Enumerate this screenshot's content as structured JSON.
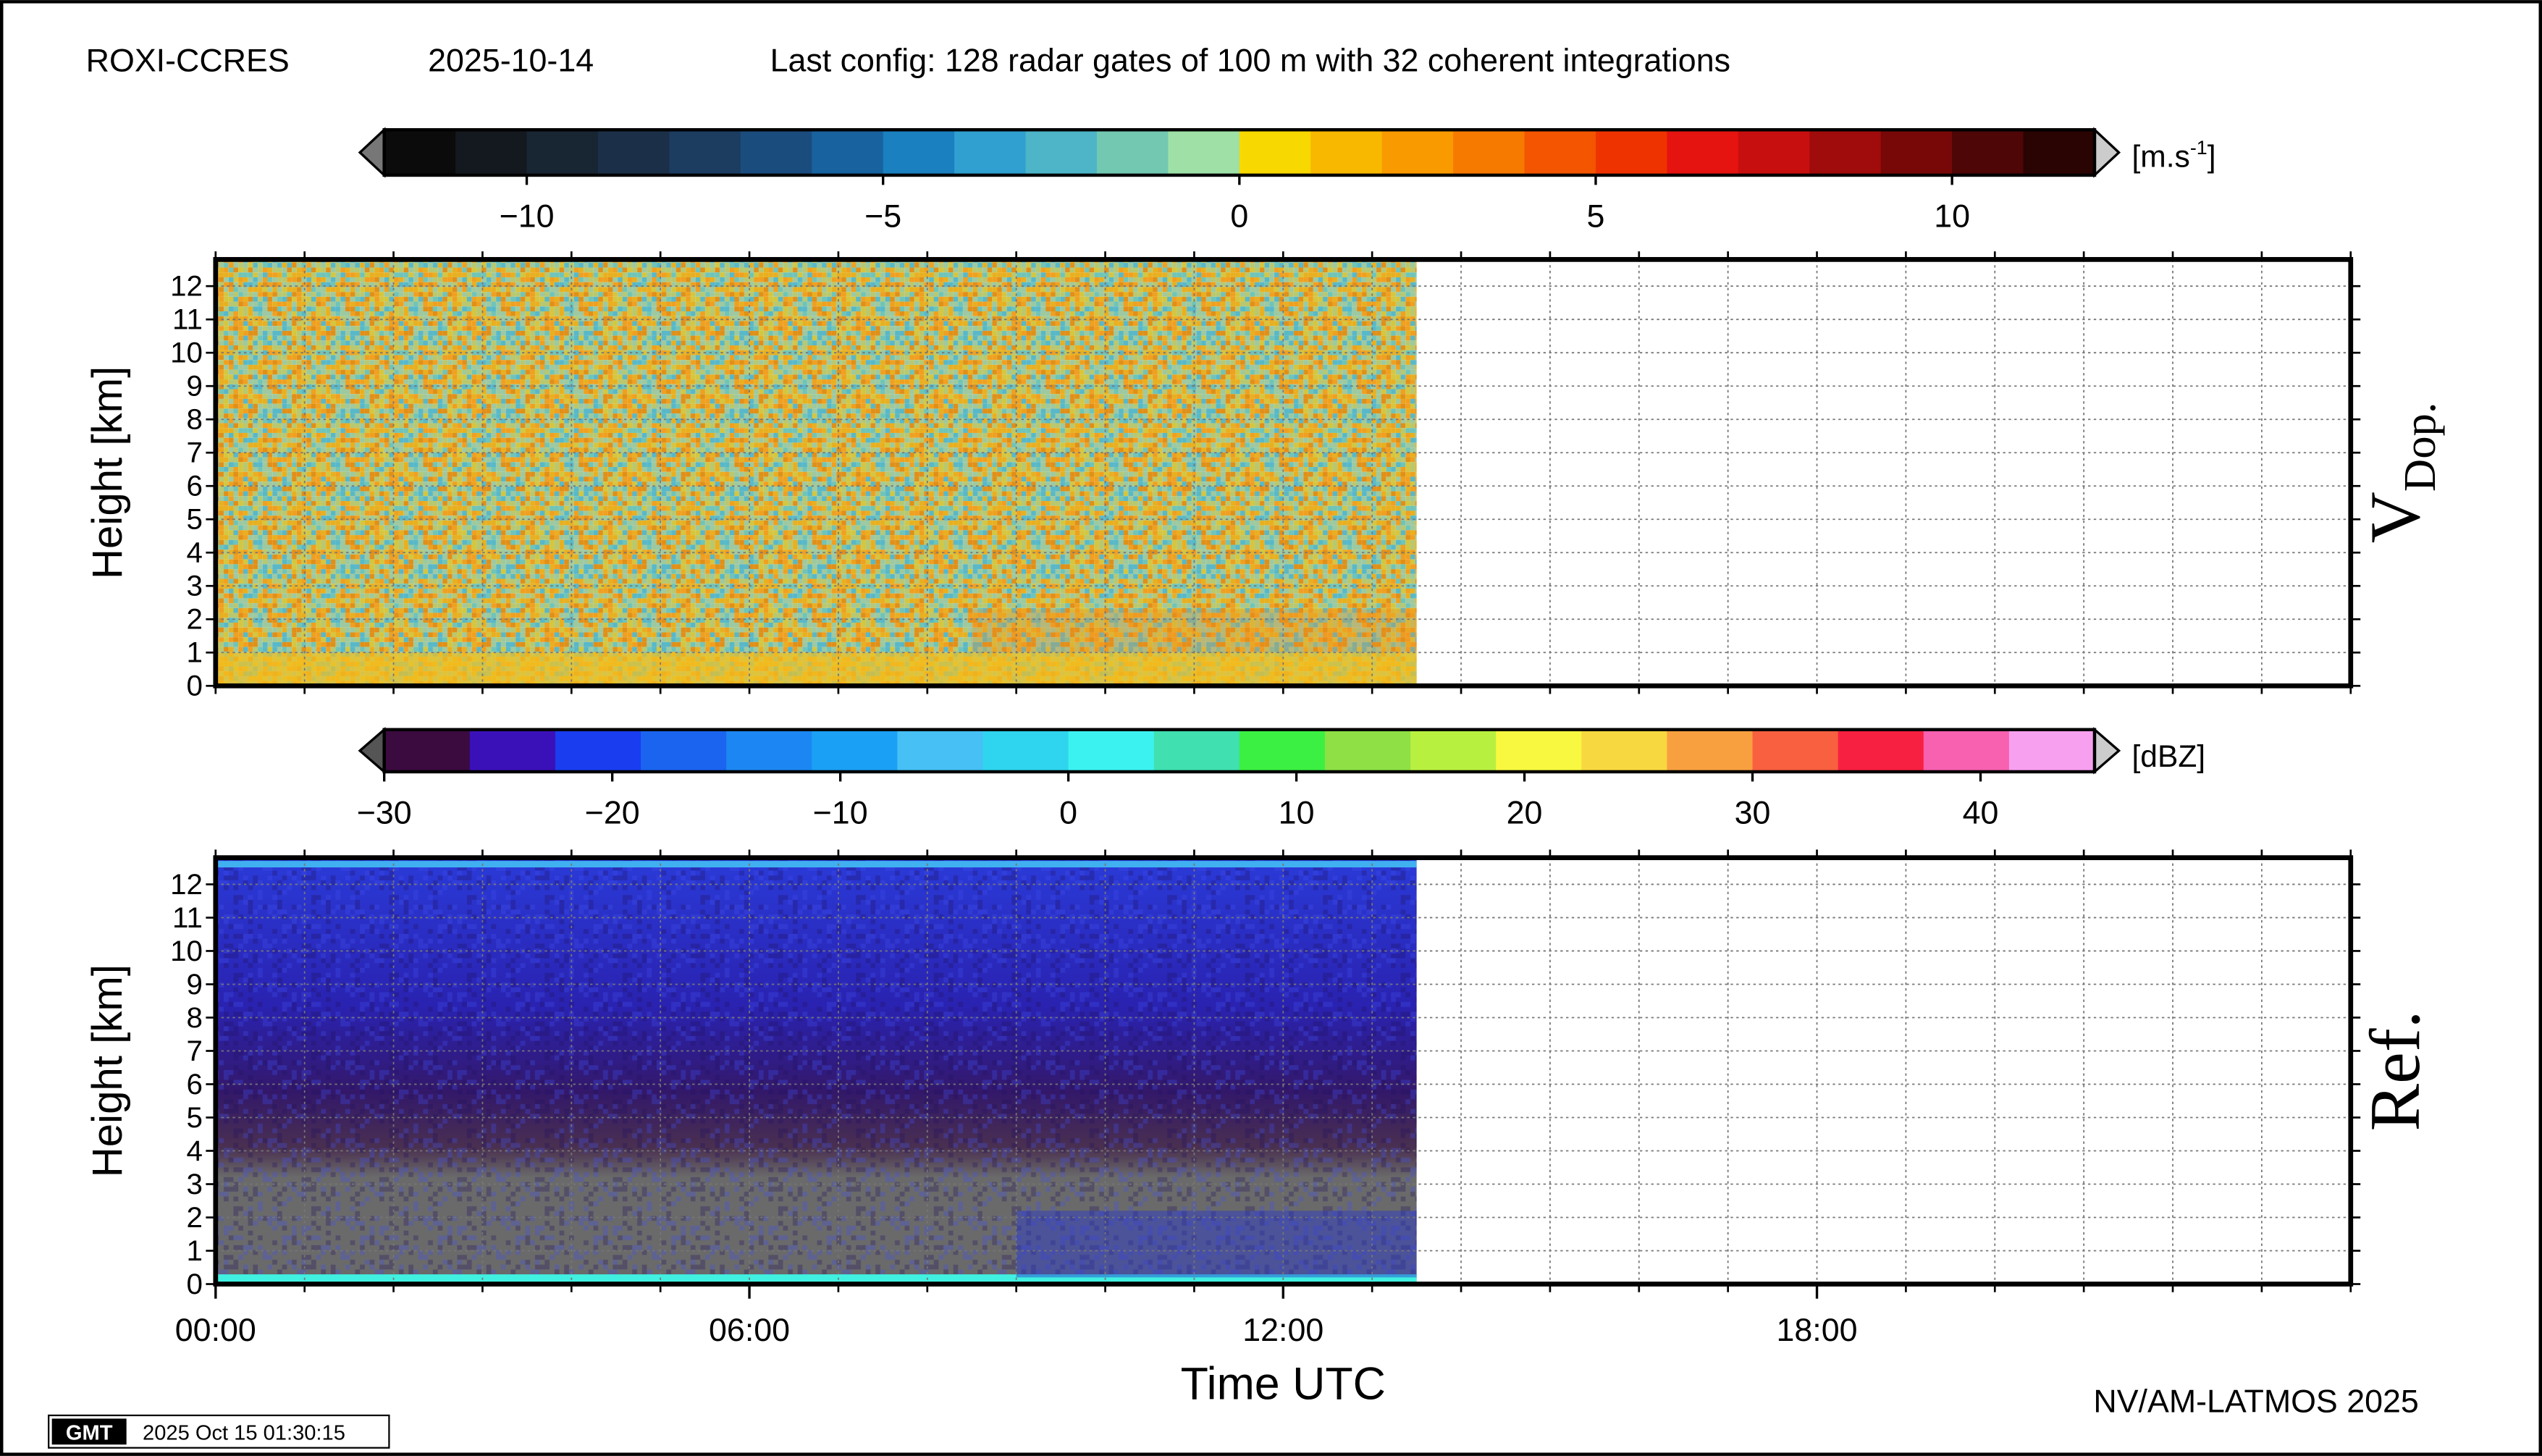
{
  "header": {
    "site": "ROXI-CCRES",
    "date": "2025-10-14",
    "config": "Last config: 128 radar gates of 100 m with 32 coherent integrations"
  },
  "chart_data": [
    {
      "type": "heatmap",
      "panel_label": "V",
      "panel_label_sub": "Dop.",
      "ylabel": "Height [km]",
      "xlim": [
        0,
        24
      ],
      "ylim": [
        0,
        12.8
      ],
      "yticks": [
        0,
        1,
        2,
        3,
        4,
        5,
        6,
        7,
        8,
        9,
        10,
        11,
        12
      ],
      "xgrid": [
        0,
        1,
        2,
        3,
        4,
        5,
        6,
        7,
        8,
        9,
        10,
        11,
        12,
        13,
        14,
        15,
        16,
        17,
        18,
        19,
        20,
        21,
        22,
        23,
        24
      ],
      "data_xlim": [
        0,
        13.5
      ],
      "grid": true,
      "colorbar": {
        "unit": "[m.s",
        "unit_sup": "-1",
        "unit_end": "]",
        "zlim": [
          -12,
          12
        ],
        "zticks": [
          {
            "value": -10,
            "label": "−10"
          },
          {
            "value": -5,
            "label": "−5"
          },
          0,
          5,
          10
        ],
        "colors": [
          "#0b0b0b",
          "#14191f",
          "#182533",
          "#1b3048",
          "#1c3c60",
          "#1b4c7e",
          "#17629f",
          "#1a80bf",
          "#2fa0cf",
          "#4db5c7",
          "#73c8b2",
          "#9ee0a6",
          "#f7d800",
          "#f9b800",
          "#f99a00",
          "#f77a00",
          "#f45500",
          "#ef3300",
          "#e51410",
          "#c80f0f",
          "#a00b0b",
          "#780808",
          "#4e0606",
          "#2a0303"
        ]
      }
    },
    {
      "type": "heatmap",
      "panel_label": "Ref.",
      "ylabel": "Height [km]",
      "xlabel": "Time UTC",
      "xlim": [
        0,
        24
      ],
      "ylim": [
        0,
        12.8
      ],
      "yticks": [
        0,
        1,
        2,
        3,
        4,
        5,
        6,
        7,
        8,
        9,
        10,
        11,
        12
      ],
      "xticks": [
        {
          "value": 0,
          "label": "00:00"
        },
        {
          "value": 6,
          "label": "06:00"
        },
        {
          "value": 12,
          "label": "12:00"
        },
        {
          "value": 18,
          "label": "18:00"
        }
      ],
      "xgrid": [
        0,
        1,
        2,
        3,
        4,
        5,
        6,
        7,
        8,
        9,
        10,
        11,
        12,
        13,
        14,
        15,
        16,
        17,
        18,
        19,
        20,
        21,
        22,
        23,
        24
      ],
      "data_xlim": [
        0,
        13.5
      ],
      "grid": true,
      "colorbar": {
        "unit": "[dBZ]",
        "zlim": [
          -30,
          45
        ],
        "zticks": [
          {
            "value": -30,
            "label": "−30"
          },
          {
            "value": -20,
            "label": "−20"
          },
          {
            "value": -10,
            "label": "−10"
          },
          0,
          10,
          20,
          30,
          40
        ],
        "colors": [
          "#3b0a3f",
          "#3a10b8",
          "#1a3df0",
          "#1b64f0",
          "#1c87f2",
          "#1aa0f5",
          "#46c0f5",
          "#2fd4ee",
          "#3cf2f0",
          "#40e0b0",
          "#3bf043",
          "#8ee045",
          "#b8f040",
          "#f8f840",
          "#f8d840",
          "#f8a040",
          "#f86040",
          "#f82040",
          "#f860b0",
          "#f8a0f0"
        ]
      }
    }
  ],
  "footer": {
    "credit": "NV/AM-LATMOS 2025",
    "timestamp": "2025 Oct 15 01:30:15",
    "logo": "GMT"
  }
}
